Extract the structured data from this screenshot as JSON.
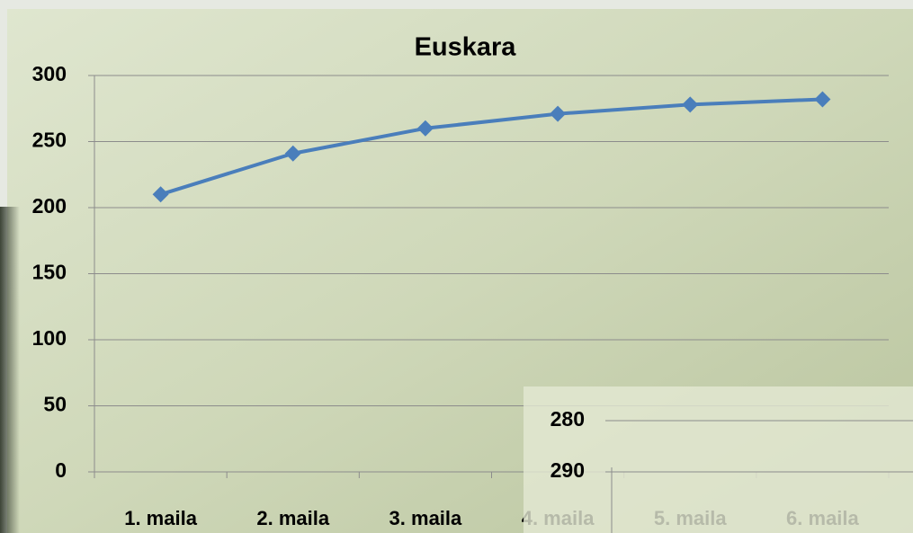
{
  "chart_data": [
    {
      "type": "line",
      "title": "Euskara",
      "categories": [
        "1. maila",
        "2. maila",
        "3. maila",
        "4. maila",
        "5. maila",
        "6. maila"
      ],
      "series": [
        {
          "name": "Euskara",
          "color": "#4a7ebb",
          "values": [
            210,
            241,
            260,
            271,
            278,
            282
          ]
        }
      ],
      "ylim": [
        0,
        300
      ],
      "yticks": [
        0,
        50,
        100,
        150,
        200,
        250,
        300
      ],
      "grid": true
    },
    {
      "type": "line",
      "yticks": [
        280,
        290
      ],
      "grid": true
    }
  ]
}
